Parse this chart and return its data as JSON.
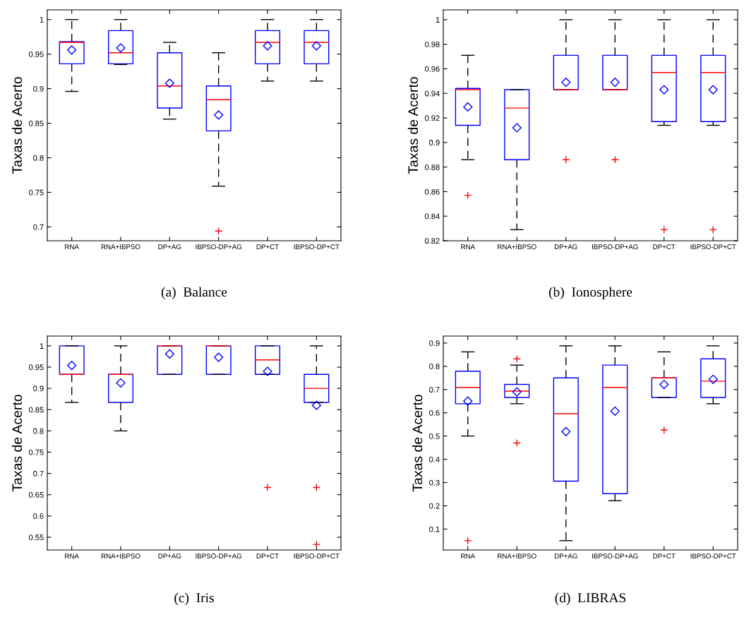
{
  "chart_data": [
    {
      "type": "box",
      "title": "(a)  Balance",
      "ylabel": "Taxas de Acerto",
      "categories": [
        "RNA",
        "RNA+IBPSO",
        "DP+AG",
        "IBPSO-DP+AG",
        "DP+CT",
        "IBPSO-DP+CT"
      ],
      "ylim": [
        0.68,
        1.014
      ],
      "yticks": [
        0.7,
        0.75,
        0.8,
        0.85,
        0.9,
        0.95,
        1
      ],
      "grid": false,
      "boxes": [
        {
          "low": 0.896,
          "q1": 0.936,
          "median": 0.967,
          "q3": 0.968,
          "high": 1,
          "mean": 0.956
        },
        {
          "low": 0.935,
          "q1": 0.936,
          "median": 0.952,
          "q3": 0.984,
          "high": 1,
          "mean": 0.959
        },
        {
          "low": 0.856,
          "q1": 0.872,
          "median": 0.904,
          "q3": 0.952,
          "high": 0.967,
          "mean": 0.908
        },
        {
          "low": 0.759,
          "q1": 0.839,
          "median": 0.884,
          "q3": 0.904,
          "high": 0.952,
          "mean": 0.862,
          "outliers": [
            0.694
          ]
        },
        {
          "low": 0.911,
          "q1": 0.936,
          "median": 0.967,
          "q3": 0.984,
          "high": 1,
          "mean": 0.962
        },
        {
          "low": 0.911,
          "q1": 0.936,
          "median": 0.967,
          "q3": 0.984,
          "high": 1,
          "mean": 0.962
        }
      ]
    },
    {
      "type": "box",
      "title": "(b)  Ionosphere",
      "ylabel": "Taxas de Acerto",
      "categories": [
        "RNA",
        "RNA+IBPSO",
        "DP+AG",
        "IBPSO-DP+AG",
        "DP+CT",
        "IBPSO-DP+CT"
      ],
      "ylim": [
        0.82,
        1.008
      ],
      "yticks": [
        0.82,
        0.84,
        0.86,
        0.88,
        0.9,
        0.92,
        0.94,
        0.96,
        0.98,
        1
      ],
      "grid": false,
      "boxes": [
        {
          "low": 0.886,
          "q1": 0.914,
          "median": 0.943,
          "q3": 0.944,
          "high": 0.971,
          "mean": 0.929,
          "outliers": [
            0.857
          ]
        },
        {
          "low": 0.829,
          "q1": 0.886,
          "median": 0.928,
          "q3": 0.943,
          "high": 0.943,
          "mean": 0.912
        },
        {
          "low": 0.943,
          "q1": 0.943,
          "median": 0.943,
          "q3": 0.971,
          "high": 1,
          "mean": 0.949,
          "outliers": [
            0.886
          ]
        },
        {
          "low": 0.943,
          "q1": 0.943,
          "median": 0.943,
          "q3": 0.971,
          "high": 1,
          "mean": 0.949,
          "outliers": [
            0.886
          ]
        },
        {
          "low": 0.914,
          "q1": 0.917,
          "median": 0.957,
          "q3": 0.971,
          "high": 1,
          "mean": 0.943,
          "outliers": [
            0.829
          ]
        },
        {
          "low": 0.914,
          "q1": 0.917,
          "median": 0.957,
          "q3": 0.971,
          "high": 1,
          "mean": 0.943,
          "outliers": [
            0.829
          ]
        }
      ]
    },
    {
      "type": "box",
      "title": "(c)  Iris",
      "ylabel": "Taxas de Acerto",
      "categories": [
        "RNA",
        "RNA+IBPSO",
        "DP+AG",
        "IBPSO-DP+AG",
        "DP+CT",
        "IBPSO-DP+CT"
      ],
      "ylim": [
        0.52,
        1.023
      ],
      "yticks": [
        0.55,
        0.6,
        0.65,
        0.7,
        0.75,
        0.8,
        0.85,
        0.9,
        0.95,
        1
      ],
      "grid": false,
      "boxes": [
        {
          "low": 0.867,
          "q1": 0.933,
          "median": 0.933,
          "q3": 1,
          "high": 1,
          "mean": 0.954
        },
        {
          "low": 0.8,
          "q1": 0.867,
          "median": 0.933,
          "q3": 0.933,
          "high": 1,
          "mean": 0.913
        },
        {
          "low": 0.933,
          "q1": 0.933,
          "median": 1,
          "q3": 1,
          "high": 1,
          "mean": 0.981
        },
        {
          "low": 0.933,
          "q1": 0.933,
          "median": 1,
          "q3": 1,
          "high": 1,
          "mean": 0.973
        },
        {
          "low": 0.933,
          "q1": 0.933,
          "median": 0.967,
          "q3": 1,
          "high": 1,
          "mean": 0.94,
          "outliers": [
            0.667
          ]
        },
        {
          "low": 0.867,
          "q1": 0.867,
          "median": 0.9,
          "q3": 0.933,
          "high": 1,
          "mean": 0.86,
          "outliers": [
            0.667,
            0.533
          ]
        }
      ]
    },
    {
      "type": "box",
      "title": "(d)  LIBRAS",
      "ylabel": "Taxas de Acerto",
      "categories": [
        "RNA",
        "RNA+IBPSO",
        "DP+AG",
        "IBPSO-DP+AG",
        "DP+CT",
        "IBPSO-DP+CT"
      ],
      "ylim": [
        0.01,
        0.93
      ],
      "yticks": [
        0.1,
        0.2,
        0.3,
        0.4,
        0.5,
        0.6,
        0.7,
        0.8,
        0.9
      ],
      "grid": false,
      "boxes": [
        {
          "low": 0.5,
          "q1": 0.639,
          "median": 0.709,
          "q3": 0.779,
          "high": 0.862,
          "mean": 0.65,
          "outliers": [
            0.05
          ]
        },
        {
          "low": 0.639,
          "q1": 0.666,
          "median": 0.693,
          "q3": 0.722,
          "high": 0.805,
          "mean": 0.69,
          "outliers": [
            0.832,
            0.47
          ]
        },
        {
          "low": 0.05,
          "q1": 0.306,
          "median": 0.596,
          "q3": 0.75,
          "high": 0.888,
          "mean": 0.519
        },
        {
          "low": 0.222,
          "q1": 0.252,
          "median": 0.709,
          "q3": 0.805,
          "high": 0.888,
          "mean": 0.607
        },
        {
          "low": 0.666,
          "q1": 0.666,
          "median": 0.75,
          "q3": 0.75,
          "high": 0.862,
          "mean": 0.722,
          "outliers": [
            0.526
          ]
        },
        {
          "low": 0.639,
          "q1": 0.666,
          "median": 0.736,
          "q3": 0.832,
          "high": 0.888,
          "mean": 0.744
        }
      ]
    }
  ]
}
